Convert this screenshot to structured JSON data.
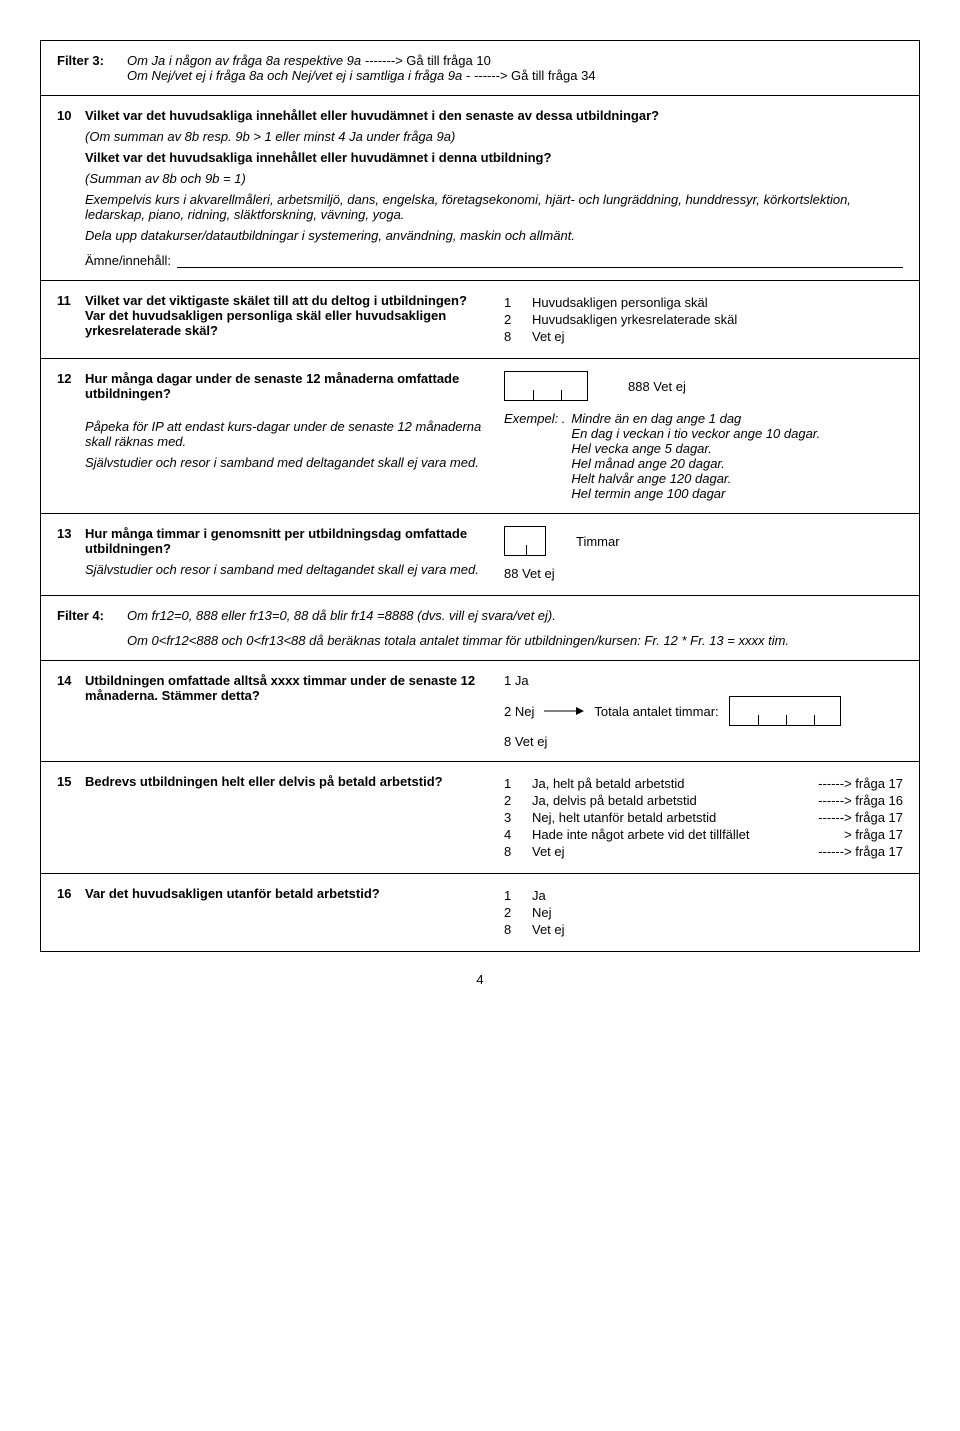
{
  "filter3": {
    "label": "Filter 3:",
    "line1_italic": "Om Ja i någon av fråga 8a respektive 9a ------->",
    "line1_goto": " Gå till fråga 10",
    "line2_italic": "Om Nej/vet ej i fråga 8a och Nej/vet ej i samtliga i fråga 9a  - ------>",
    "line2_goto": " Gå till fråga 34"
  },
  "q10": {
    "num": "10",
    "title": "Vilket var det huvudsakliga innehållet eller huvudämnet i den senaste av dessa utbildningar?",
    "note1": "(Om summan av 8b resp. 9b > 1 eller minst 4 Ja under fråga 9a)",
    "title2": "Vilket var det huvudsakliga innehållet eller huvudämnet i denna utbildning?",
    "note2": "(Summan av 8b och 9b = 1)",
    "example": "Exempelvis kurs i akvarellmåleri, arbetsmiljö, dans, engelska, företagsekonomi, hjärt- och lungräddning, hunddressyr, körkortslektion, ledarskap, piano, ridning, släktforskning, vävning, yoga.",
    "dela": "Dela upp datakurser/datautbildningar i systemering, användning, maskin och allmänt.",
    "amne": "Ämne/innehåll:"
  },
  "q11": {
    "num": "11",
    "title": "Vilket var det viktigaste skälet till att du deltog i utbildningen? Var det huvudsakligen personliga skäl eller huvudsakligen yrkesrelaterade skäl?",
    "opts": [
      {
        "n": "1",
        "t": "Huvudsakligen personliga skäl"
      },
      {
        "n": "2",
        "t": "Huvudsakligen yrkesrelaterade skäl"
      },
      {
        "n": "8",
        "t": "Vet ej"
      }
    ]
  },
  "q12": {
    "num": "12",
    "title": "Hur många dagar under de senaste 12 månaderna omfattade utbildningen?",
    "papeka": "Påpeka för IP att endast kurs-dagar under de senaste 12 månaderna skall räknas med.",
    "sjalv": "Självstudier och resor i samband med deltagandet skall ej vara med.",
    "vetej": "888 Vet ej",
    "exempel_label": "Exempel: .",
    "ex_lines": [
      "Mindre än en dag ange 1 dag",
      "En dag i veckan i tio veckor ange 10 dagar.",
      "Hel vecka ange 5 dagar.",
      "Hel månad ange 20 dagar.",
      "Helt halvår ange 120 dagar.",
      "Hel termin ange 100 dagar"
    ]
  },
  "q13": {
    "num": "13",
    "title": "Hur många timmar i genomsnitt per utbildningsdag omfattade utbildningen?",
    "sjalv": "Självstudier och resor i samband med deltagandet skall ej vara med.",
    "timmar": "Timmar",
    "vetej": "88 Vet ej"
  },
  "filter4": {
    "label": "Filter 4:",
    "line1": "Om fr12=0, 888 eller fr13=0, 88 då blir fr14 =8888 (dvs. vill ej svara/vet ej).",
    "line2": "Om 0<fr12<888 och 0<fr13<88 då beräknas totala antalet timmar för utbildningen/kursen: Fr. 12 * Fr. 13 = xxxx tim."
  },
  "q14": {
    "num": "14",
    "title": "Utbildningen omfattade alltså xxxx timmar under de senaste 12 månaderna. Stämmer detta?",
    "opt1": "1 Ja",
    "opt2": "2 Nej",
    "totala": "Totala antalet timmar:",
    "opt8": "8 Vet ej"
  },
  "q15": {
    "num": "15",
    "title": "Bedrevs utbildningen helt eller delvis på betald arbetstid?",
    "opts": [
      {
        "n": "1",
        "t": "Ja, helt på betald arbetstid",
        "g": "------> fråga 17"
      },
      {
        "n": "2",
        "t": "Ja, delvis på betald arbetstid",
        "g": "------> fråga 16"
      },
      {
        "n": "3",
        "t": "Nej, helt utanför betald arbetstid",
        "g": "------> fråga 17"
      },
      {
        "n": "4",
        "t": "Hade inte något arbete vid det tillfället",
        "g": "> fråga 17"
      },
      {
        "n": "8",
        "t": "Vet ej",
        "g": "------> fråga 17"
      }
    ]
  },
  "q16": {
    "num": "16",
    "title": "Var det huvudsakligen utanför betald arbetstid?",
    "opts": [
      {
        "n": "1",
        "t": "Ja"
      },
      {
        "n": "2",
        "t": "Nej"
      },
      {
        "n": "8",
        "t": "Vet ej"
      }
    ]
  },
  "page": "4"
}
